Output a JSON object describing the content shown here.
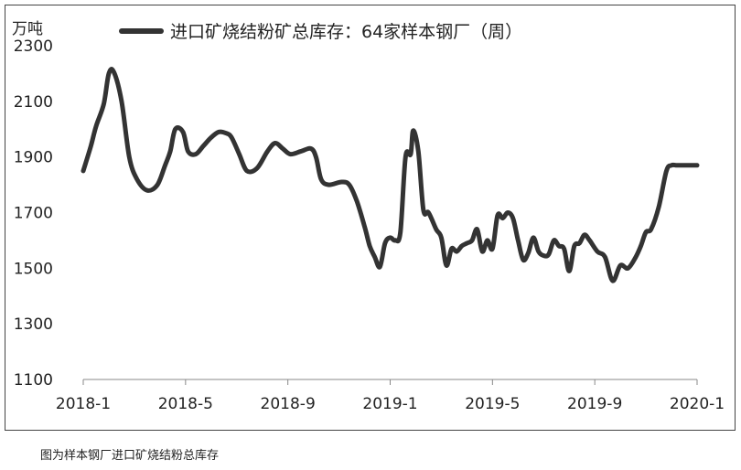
{
  "chart_data": {
    "type": "line",
    "unit_label": "万吨",
    "x_tick_labels": [
      "2018-1",
      "2018-5",
      "2018-9",
      "2019-1",
      "2019-5",
      "2019-9",
      "2020-1"
    ],
    "y_ticks": [
      1100,
      1300,
      1500,
      1700,
      1900,
      2100,
      2300
    ],
    "ylim": [
      1100,
      2300
    ],
    "xlim": [
      0,
      24
    ],
    "grid": false,
    "legend_position": "top",
    "series": [
      {
        "name": "进口矿烧结粉矿总库存：64家样本钢厂（周）",
        "color": "#333333",
        "x": [
          0.0,
          0.3,
          0.5,
          0.8,
          1.0,
          1.2,
          1.5,
          1.8,
          2.1,
          2.5,
          2.9,
          3.2,
          3.4,
          3.6,
          3.9,
          4.1,
          4.4,
          4.7,
          5.0,
          5.3,
          5.6,
          5.8,
          6.1,
          6.4,
          6.8,
          7.2,
          7.5,
          7.8,
          8.1,
          8.5,
          8.9,
          9.1,
          9.3,
          9.6,
          10.1,
          10.4,
          10.7,
          11.0,
          11.2,
          11.4,
          11.6,
          11.8,
          12.0,
          12.2,
          12.4,
          12.6,
          12.8,
          12.9,
          13.1,
          13.3,
          13.5,
          13.8,
          14.0,
          14.2,
          14.4,
          14.6,
          14.8,
          15.0,
          15.2,
          15.4,
          15.6,
          15.8,
          16.0,
          16.2,
          16.4,
          16.6,
          16.8,
          17.0,
          17.2,
          17.4,
          17.6,
          17.8,
          18.0,
          18.2,
          18.4,
          18.6,
          18.8,
          19.0,
          19.2,
          19.4,
          19.6,
          19.8,
          20.1,
          20.4,
          20.7,
          21.0,
          21.3,
          21.6,
          21.8,
          22.0,
          22.2,
          22.5,
          22.8,
          23.0,
          23.2,
          23.4,
          23.6,
          24.0
        ],
        "y": [
          1850,
          1940,
          2010,
          2090,
          2200,
          2205,
          2100,
          1900,
          1820,
          1780,
          1800,
          1870,
          1920,
          2000,
          1990,
          1920,
          1910,
          1940,
          1970,
          1990,
          1985,
          1970,
          1910,
          1850,
          1860,
          1920,
          1950,
          1930,
          1910,
          1920,
          1930,
          1900,
          1820,
          1800,
          1810,
          1800,
          1740,
          1650,
          1580,
          1540,
          1505,
          1590,
          1610,
          1600,
          1630,
          1900,
          1910,
          1995,
          1920,
          1710,
          1700,
          1640,
          1610,
          1510,
          1570,
          1560,
          1580,
          1590,
          1600,
          1640,
          1560,
          1600,
          1570,
          1690,
          1680,
          1700,
          1680,
          1600,
          1530,
          1555,
          1610,
          1560,
          1545,
          1550,
          1600,
          1580,
          1570,
          1490,
          1580,
          1590,
          1620,
          1600,
          1560,
          1540,
          1455,
          1510,
          1500,
          1540,
          1580,
          1630,
          1640,
          1720,
          1850,
          1870,
          1870,
          1870,
          1870,
          1870
        ]
      }
    ]
  },
  "caption": "图为样本钢厂进口矿烧结粉总库存"
}
